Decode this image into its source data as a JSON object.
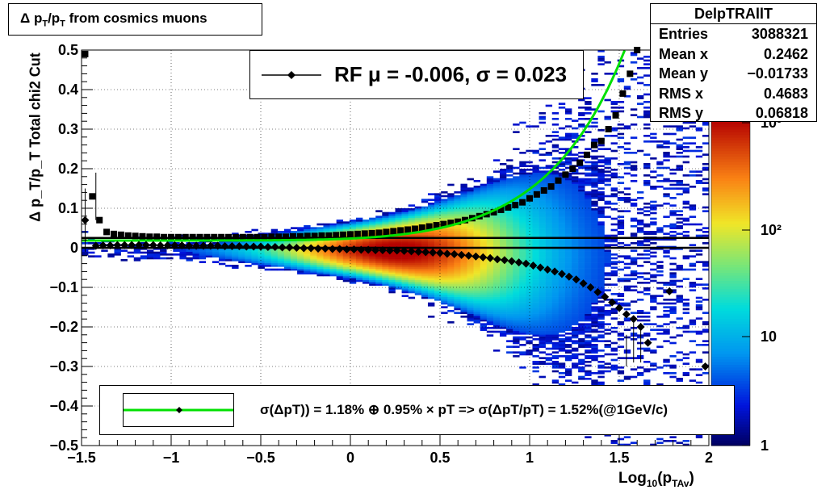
{
  "title": {
    "main": "Δ p",
    "sub1": "T",
    "mid": "/p",
    "sub2": "T",
    "rest": " from cosmics muons"
  },
  "stats_box": {
    "name": "DelpTRAllT",
    "rows": [
      {
        "label": "Entries",
        "value": "3088321"
      },
      {
        "label": "Mean x",
        "value": "0.2462"
      },
      {
        "label": "Mean y",
        "value": "−0.01733"
      },
      {
        "label": "RMS x",
        "value": "0.4683"
      },
      {
        "label": "RMS y",
        "value": "0.06818"
      }
    ]
  },
  "legend_top": {
    "text": "RF μ = -0.006, σ =   0.023"
  },
  "legend_bottom": {
    "text": "σ(ΔpT)) =  1.18% ⊕  0.95% × pT => σ(ΔpT/pT) =  1.52%(@1GeV/c)"
  },
  "axes": {
    "y_title": "Δ p_T/p_T   Total chi2 Cut",
    "x_title_main": "Log",
    "x_title_sub": "10",
    "x_title_mid": "(p",
    "x_title_sub2": "TAv",
    "x_title_end": ")"
  },
  "colors": {
    "fit_curve": "#00e000",
    "markers": "#000000"
  },
  "chart_data": {
    "type": "heatmap",
    "xlim": [
      -1.5,
      2.0
    ],
    "ylim": [
      -0.5,
      0.5
    ],
    "xticks": [
      -1.5,
      -1.0,
      -0.5,
      0,
      0.5,
      1.0,
      1.5,
      2.0
    ],
    "xtick_labels": [
      "−1.5",
      "−1",
      "−0.5",
      "0",
      "0.5",
      "1",
      "1.5",
      "2"
    ],
    "yticks": [
      -0.5,
      -0.4,
      -0.3,
      -0.2,
      -0.1,
      0,
      0.1,
      0.2,
      0.3,
      0.4,
      0.5
    ],
    "ytick_labels": [
      "−0.5",
      "−0.4",
      "−0.3",
      "−0.2",
      "−0.1",
      "0",
      "0.1",
      "0.2",
      "0.3",
      "0.4",
      "0.5"
    ],
    "zscale": "log",
    "z_range": [
      1,
      1000
    ],
    "z_labels": [
      "1",
      "10",
      "10²",
      "10³"
    ],
    "grid": true,
    "horizontal_lines": [
      0.025,
      0.0
    ],
    "series": [
      {
        "kind": "sigma-squares",
        "x": [
          -1.48,
          -1.44,
          -1.4,
          -1.36,
          -1.32,
          -1.28,
          -1.24,
          -1.2,
          -1.16,
          -1.12,
          -1.08,
          -1.04,
          -1.0,
          -0.96,
          -0.92,
          -0.88,
          -0.84,
          -0.8,
          -0.76,
          -0.72,
          -0.68,
          -0.64,
          -0.6,
          -0.56,
          -0.52,
          -0.48,
          -0.44,
          -0.4,
          -0.36,
          -0.32,
          -0.28,
          -0.24,
          -0.2,
          -0.16,
          -0.12,
          -0.08,
          -0.04,
          0.0,
          0.04,
          0.08,
          0.12,
          0.16,
          0.2,
          0.24,
          0.28,
          0.32,
          0.36,
          0.4,
          0.44,
          0.48,
          0.52,
          0.56,
          0.6,
          0.64,
          0.68,
          0.72,
          0.76,
          0.8,
          0.84,
          0.88,
          0.92,
          0.96,
          1.0,
          1.04,
          1.08,
          1.12,
          1.16,
          1.2,
          1.24,
          1.28,
          1.32,
          1.36,
          1.4,
          1.44,
          1.48,
          1.52,
          1.56,
          1.6
        ],
        "y": [
          0.49,
          0.13,
          0.07,
          0.04,
          0.035,
          0.033,
          0.031,
          0.03,
          0.029,
          0.028,
          0.028,
          0.027,
          0.027,
          0.027,
          0.027,
          0.027,
          0.027,
          0.027,
          0.027,
          0.027,
          0.027,
          0.027,
          0.027,
          0.027,
          0.027,
          0.027,
          0.028,
          0.028,
          0.028,
          0.029,
          0.029,
          0.03,
          0.03,
          0.031,
          0.031,
          0.032,
          0.033,
          0.034,
          0.035,
          0.036,
          0.037,
          0.038,
          0.04,
          0.042,
          0.044,
          0.046,
          0.048,
          0.051,
          0.054,
          0.057,
          0.06,
          0.063,
          0.066,
          0.07,
          0.075,
          0.08,
          0.085,
          0.09,
          0.096,
          0.102,
          0.108,
          0.115,
          0.125,
          0.135,
          0.145,
          0.155,
          0.17,
          0.185,
          0.2,
          0.215,
          0.235,
          0.26,
          0.27,
          0.3,
          0.335,
          0.39,
          0.44,
          0.5
        ]
      },
      {
        "kind": "mean-diamonds",
        "x": [
          -1.48,
          -1.42,
          -1.38,
          -1.34,
          -1.3,
          -1.26,
          -1.22,
          -1.18,
          -1.14,
          -1.1,
          -1.06,
          -1.02,
          -0.98,
          -0.94,
          -0.9,
          -0.86,
          -0.82,
          -0.78,
          -0.74,
          -0.7,
          -0.66,
          -0.62,
          -0.58,
          -0.54,
          -0.5,
          -0.46,
          -0.42,
          -0.38,
          -0.34,
          -0.3,
          -0.26,
          -0.22,
          -0.18,
          -0.14,
          -0.1,
          -0.06,
          -0.02,
          0.02,
          0.06,
          0.1,
          0.14,
          0.18,
          0.22,
          0.26,
          0.3,
          0.34,
          0.38,
          0.42,
          0.46,
          0.5,
          0.54,
          0.58,
          0.62,
          0.66,
          0.7,
          0.74,
          0.78,
          0.82,
          0.86,
          0.9,
          0.94,
          0.98,
          1.02,
          1.06,
          1.1,
          1.14,
          1.18,
          1.22,
          1.26,
          1.3,
          1.34,
          1.38,
          1.42,
          1.46,
          1.5,
          1.54,
          1.58,
          1.62,
          1.66,
          1.78,
          1.98
        ],
        "y": [
          0.07,
          0.005,
          0.006,
          0.006,
          0.007,
          0.007,
          0.007,
          0.007,
          0.007,
          0.007,
          0.006,
          0.006,
          0.006,
          0.006,
          0.005,
          0.005,
          0.005,
          0.005,
          0.005,
          0.004,
          0.004,
          0.004,
          0.003,
          0.003,
          0.003,
          0.002,
          0.002,
          0.001,
          0.001,
          0.0,
          -0.001,
          -0.001,
          -0.002,
          -0.002,
          -0.003,
          -0.003,
          -0.004,
          -0.004,
          -0.005,
          -0.005,
          -0.006,
          -0.006,
          -0.007,
          -0.007,
          -0.008,
          -0.009,
          -0.01,
          -0.011,
          -0.012,
          -0.013,
          -0.015,
          -0.016,
          -0.018,
          -0.02,
          -0.022,
          -0.024,
          -0.026,
          -0.029,
          -0.031,
          -0.034,
          -0.037,
          -0.04,
          -0.045,
          -0.05,
          -0.055,
          -0.06,
          -0.066,
          -0.073,
          -0.08,
          -0.09,
          -0.1,
          -0.112,
          -0.124,
          -0.138,
          -0.152,
          -0.168,
          -0.18,
          -0.2,
          -0.24,
          -0.11,
          -0.3
        ]
      },
      {
        "kind": "fit-curve",
        "formula": "sqrt(0.0118^2 + (0.0095*10^x)^2)"
      }
    ]
  }
}
